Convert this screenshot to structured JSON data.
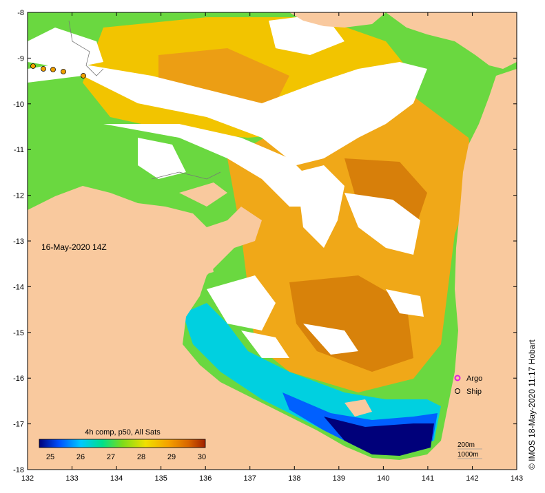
{
  "map": {
    "date_label": "16-May-2020 14Z",
    "credit": "© IMOS 18-May-2020 11:17 Hobart",
    "land_color": "#f9c99e",
    "cloud_color": "#ffffff",
    "lon_range": [
      132,
      143
    ],
    "lat_range": [
      -18,
      -8
    ],
    "lon_ticks": [
      "132",
      "133",
      "134",
      "135",
      "136",
      "137",
      "138",
      "139",
      "140",
      "141",
      "142",
      "143"
    ],
    "lat_ticks": [
      "-8",
      "-9",
      "-10",
      "-11",
      "-12",
      "-13",
      "-14",
      "-15",
      "-16",
      "-17",
      "-18"
    ]
  },
  "colorbar": {
    "title": "4h comp, p50, All Sats",
    "ticks": [
      "25",
      "26",
      "27",
      "28",
      "29",
      "30"
    ],
    "colors": [
      "#00007a",
      "#0050ff",
      "#00c8ff",
      "#00e08a",
      "#7cdc1a",
      "#f0e000",
      "#f5a000",
      "#d86400",
      "#a02000"
    ]
  },
  "legend": {
    "argo_label": "Argo",
    "ship_label": "Ship",
    "argo_color": "#e020e0",
    "contour_200": "200m",
    "contour_1000": "1000m"
  }
}
